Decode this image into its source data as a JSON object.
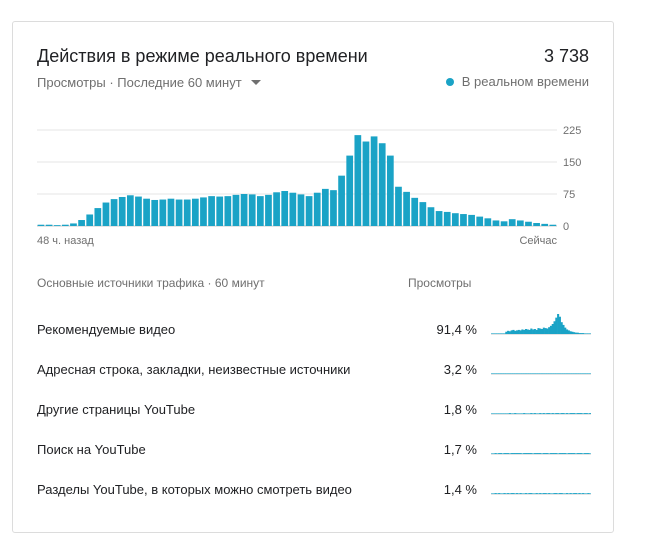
{
  "header": {
    "title": "Действия в режиме реального времени",
    "total": "3 738",
    "subtitle": "Просмотры · Последние 60 минут",
    "realtime_label": "В реальном времени"
  },
  "colors": {
    "accent": "#1aa3c6",
    "grid": "#e6e6e6",
    "text_secondary": "#6f6f6f"
  },
  "chart_data": {
    "type": "bar",
    "x_start_label": "48 ч. назад",
    "x_end_label": "Сейчас",
    "yticks": [
      "225",
      "150",
      "75",
      "0"
    ],
    "ylim": [
      0,
      225
    ],
    "values": [
      3,
      3,
      2,
      3,
      6,
      14,
      27,
      42,
      55,
      63,
      68,
      72,
      69,
      64,
      61,
      62,
      64,
      62,
      62,
      64,
      67,
      70,
      69,
      70,
      73,
      75,
      74,
      70,
      73,
      79,
      82,
      78,
      74,
      70,
      78,
      87,
      84,
      118,
      165,
      213,
      198,
      210,
      194,
      165,
      92,
      80,
      66,
      56,
      44,
      35,
      33,
      30,
      28,
      26,
      22,
      18,
      13,
      11,
      16,
      13,
      10,
      7,
      5,
      3
    ]
  },
  "traffic": {
    "header": "Основные источники трафика · 60 минут",
    "views_header": "Просмотры",
    "rows": [
      {
        "label": "Рекомендуемые видео",
        "pct": "91,4 %",
        "spark": [
          0,
          0,
          0,
          0,
          0,
          0,
          0,
          0,
          5,
          7,
          6,
          8,
          9,
          7,
          8,
          9,
          8,
          10,
          9,
          11,
          10,
          9,
          12,
          10,
          11,
          9,
          13,
          12,
          11,
          14,
          13,
          12,
          15,
          18,
          22,
          28,
          36,
          44,
          38,
          26,
          20,
          14,
          10,
          8,
          6,
          5,
          4,
          3,
          3,
          2,
          2,
          2,
          1,
          1,
          1,
          1
        ]
      },
      {
        "label": "Адресная строка, закладки, неизвестные источники",
        "pct": "3,2 %",
        "spark": [
          0,
          0,
          0,
          0,
          0,
          0,
          1,
          0,
          1,
          1,
          0,
          1,
          0,
          1,
          1,
          0,
          1,
          0,
          1,
          1,
          0,
          1,
          1,
          0,
          1,
          0,
          1,
          1,
          1,
          0,
          1,
          1,
          0,
          1,
          1,
          0,
          1,
          0,
          1,
          1,
          0,
          1,
          0,
          1,
          1,
          0,
          1,
          0,
          1,
          0,
          1,
          0,
          0,
          1,
          0,
          0
        ]
      },
      {
        "label": "Другие страницы YouTube",
        "pct": "1,8 %",
        "spark": [
          0,
          0,
          0,
          0,
          0,
          0,
          0,
          0,
          0,
          0,
          2,
          0,
          0,
          2,
          0,
          0,
          0,
          0,
          2,
          0,
          0,
          0,
          2,
          0,
          2,
          0,
          0,
          2,
          0,
          2,
          0,
          2,
          2,
          0,
          2,
          0,
          2,
          2,
          0,
          2,
          2,
          0,
          2,
          0,
          2,
          2,
          2,
          0,
          2,
          2,
          2,
          0,
          2,
          2,
          0,
          2
        ]
      },
      {
        "label": "Поиск на YouTube",
        "pct": "1,7 %",
        "spark": [
          0,
          0,
          2,
          0,
          2,
          2,
          0,
          2,
          2,
          2,
          0,
          2,
          2,
          2,
          2,
          2,
          2,
          0,
          2,
          2,
          2,
          2,
          2,
          0,
          2,
          2,
          2,
          2,
          0,
          2,
          2,
          2,
          0,
          2,
          2,
          2,
          2,
          0,
          2,
          2,
          2,
          2,
          0,
          2,
          2,
          2,
          2,
          0,
          2,
          2,
          2,
          0,
          2,
          2,
          2,
          0
        ]
      },
      {
        "label": "Разделы YouTube, в которых можно смотреть видео",
        "pct": "1,4 %",
        "spark": [
          0,
          0,
          2,
          0,
          2,
          0,
          0,
          2,
          0,
          2,
          0,
          2,
          2,
          0,
          2,
          0,
          2,
          0,
          0,
          2,
          0,
          2,
          2,
          0,
          0,
          2,
          0,
          2,
          0,
          2,
          2,
          0,
          2,
          0,
          0,
          2,
          2,
          0,
          2,
          2,
          0,
          0,
          2,
          0,
          2,
          0,
          2,
          2,
          0,
          2,
          0,
          2,
          0,
          0,
          2,
          0
        ]
      }
    ]
  }
}
